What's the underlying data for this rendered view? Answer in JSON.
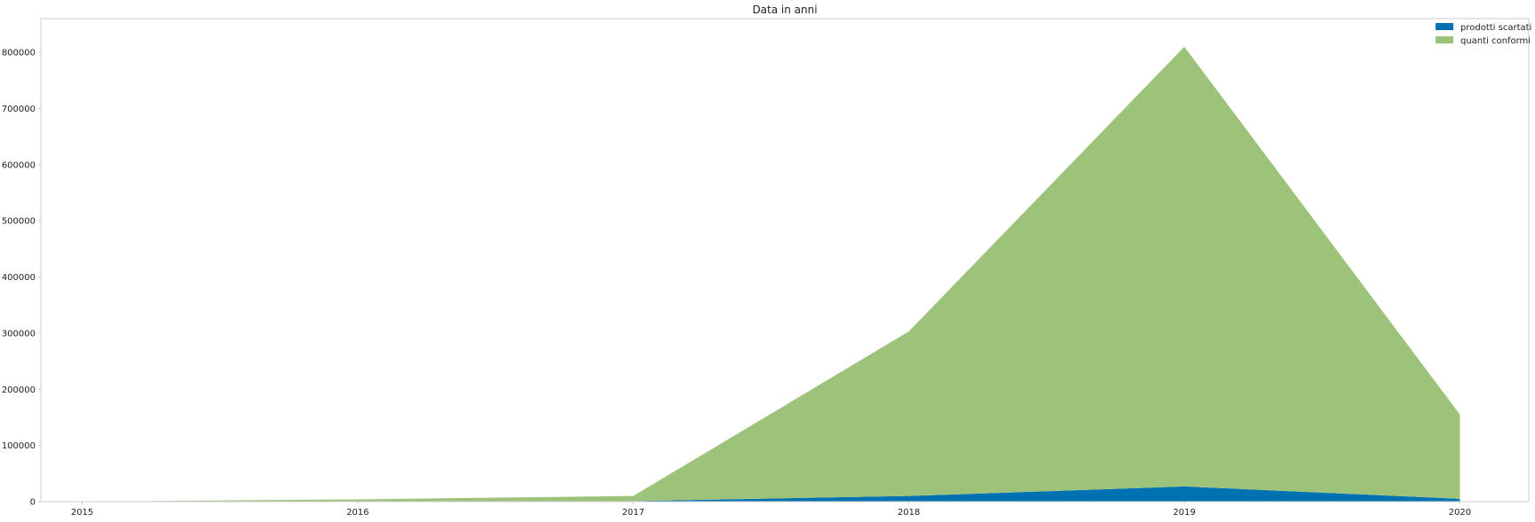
{
  "chart_data": {
    "type": "area",
    "stacked": true,
    "title": "Data in anni",
    "xlabel": "",
    "ylabel": "",
    "x": [
      "2015",
      "2016",
      "2017",
      "2018",
      "2019",
      "2020"
    ],
    "series": [
      {
        "name": "prodotti scartati",
        "color": "#0072B2",
        "values": [
          0,
          500,
          1000,
          10000,
          27000,
          5000
        ]
      },
      {
        "name": "quanti conformi",
        "color": "#9DC37A",
        "values": [
          0,
          3500,
          9000,
          293000,
          783000,
          150000
        ]
      }
    ],
    "xlim": [
      2014.85,
      2020.25
    ],
    "ylim": [
      0,
      860000
    ],
    "yticks": [
      0,
      100000,
      200000,
      300000,
      400000,
      500000,
      600000,
      700000,
      800000
    ],
    "grid": false,
    "legend_position": "top-right"
  }
}
